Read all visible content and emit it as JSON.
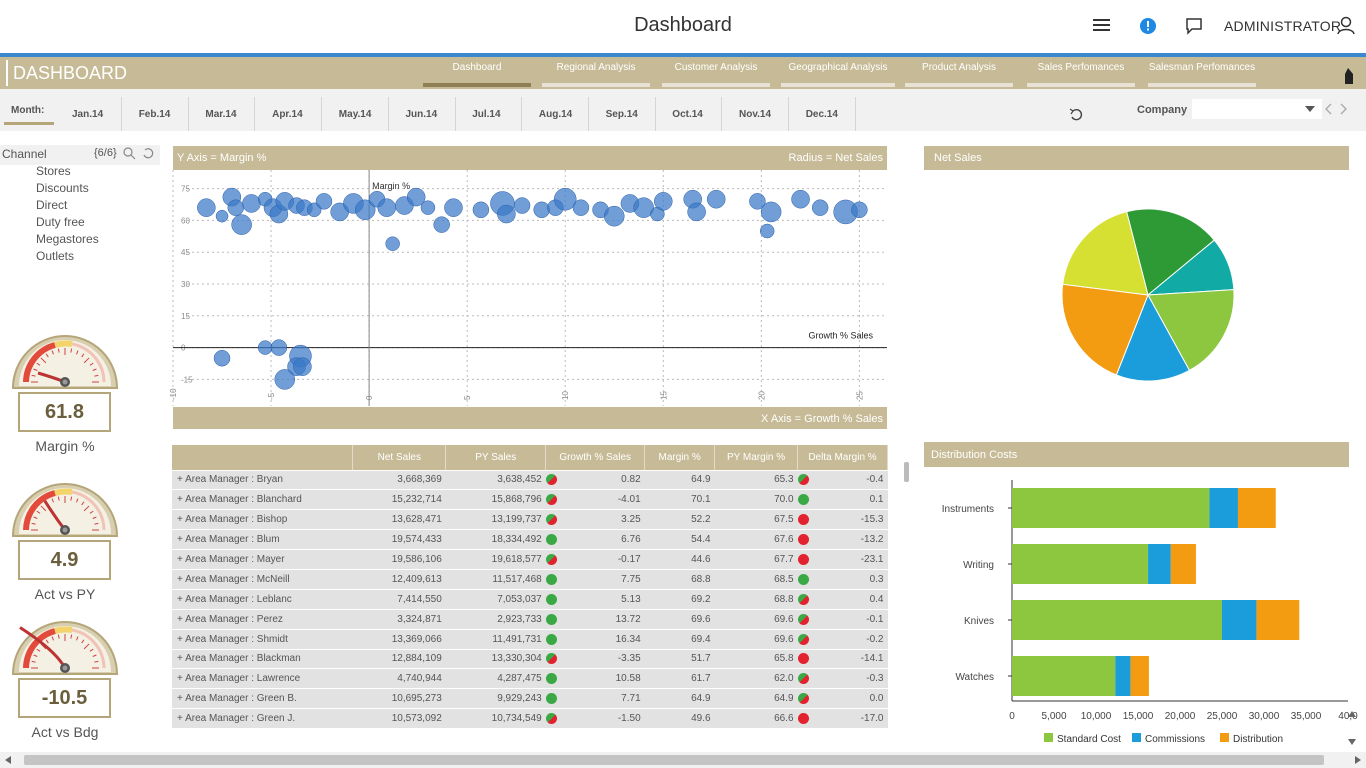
{
  "app": {
    "title": "Dashboard",
    "user": "ADMINISTRATOR"
  },
  "header": {
    "title": "DASHBOARD",
    "tabs": [
      {
        "label": "Dashboard"
      },
      {
        "label": "Regional Analysis"
      },
      {
        "label": "Customer Analysis"
      },
      {
        "label": "Geographical Analysis"
      },
      {
        "label": "Product Analysis"
      },
      {
        "label": "Sales Perfomances"
      },
      {
        "label": "Salesman Perfomances"
      }
    ]
  },
  "period": {
    "label": "Month:",
    "months": [
      "Jan.14",
      "Feb.14",
      "Mar.14",
      "Apr.14",
      "May.14",
      "Jun.14",
      "Jul.14",
      "Aug.14",
      "Sep.14",
      "Oct.14",
      "Nov.14",
      "Dec.14"
    ],
    "company_label": "Company",
    "company_value": ""
  },
  "channel": {
    "title": "Channel",
    "count": "{6/6}",
    "items": [
      "Stores",
      "Discounts",
      "Direct",
      "Duty free",
      "Megastores",
      "Outlets"
    ]
  },
  "gauges": [
    {
      "value": "61.8",
      "label": "Margin %"
    },
    {
      "value": "4.9",
      "label": "Act vs PY"
    },
    {
      "value": "-10.5",
      "label": "Act vs Bdg"
    }
  ],
  "scatter": {
    "top_left": "Y Axis = Margin %",
    "top_right": "Radius = Net Sales",
    "bottom_right": "X Axis = Growth % Sales",
    "y_ref_label": "Margin %",
    "x_ref_label": "Growth % Sales"
  },
  "table": {
    "columns": [
      "",
      "Net Sales",
      "PY Sales",
      "Growth % Sales",
      "Margin %",
      "PY Margin %",
      "Delta Margin %"
    ],
    "rows": [
      [
        "+ Area Manager : Bryan",
        "3,668,369",
        "3,638,452",
        "0.82",
        "64.9",
        "65.3",
        "-0.4"
      ],
      [
        "+ Area Manager : Blanchard",
        "15,232,714",
        "15,868,796",
        "-4.01",
        "70.1",
        "70.0",
        "0.1"
      ],
      [
        "+ Area Manager : Bishop",
        "13,628,471",
        "13,199,737",
        "3.25",
        "52.2",
        "67.5",
        "-15.3"
      ],
      [
        "+ Area Manager : Blum",
        "19,574,433",
        "18,334,492",
        "6.76",
        "54.4",
        "67.6",
        "-13.2"
      ],
      [
        "+ Area Manager : Mayer",
        "19,586,106",
        "19,618,577",
        "-0.17",
        "44.6",
        "67.7",
        "-23.1"
      ],
      [
        "+ Area Manager : McNeill",
        "12,409,613",
        "11,517,468",
        "7.75",
        "68.8",
        "68.5",
        "0.3"
      ],
      [
        "+ Area Manager : Leblanc",
        "7,414,550",
        "7,053,037",
        "5.13",
        "69.2",
        "68.8",
        "0.4"
      ],
      [
        "+ Area Manager : Perez",
        "3,324,871",
        "2,923,733",
        "13.72",
        "69.6",
        "69.6",
        "-0.1"
      ],
      [
        "+ Area Manager : Shmidt",
        "13,369,066",
        "11,491,731",
        "16.34",
        "69.4",
        "69.6",
        "-0.2"
      ],
      [
        "+ Area Manager : Blackman",
        "12,884,109",
        "13,330,304",
        "-3.35",
        "51.7",
        "65.8",
        "-14.1"
      ],
      [
        "+ Area Manager : Lawrence",
        "4,740,944",
        "4,287,475",
        "10.58",
        "61.7",
        "62.0",
        "-0.3"
      ],
      [
        "+ Area Manager : Green B.",
        "10,695,273",
        "9,929,243",
        "7.71",
        "64.9",
        "64.9",
        "0.0"
      ],
      [
        "+ Area Manager : Green J.",
        "10,573,092",
        "10,734,549",
        "-1.50",
        "49.6",
        "66.6",
        "-17.0"
      ]
    ]
  },
  "colors": {
    "band": "#c7bb97",
    "accent_blue": "#3a88d0",
    "green": "#8dc63f",
    "blue": "#1b9ddb",
    "orange": "#f39c12",
    "dark_green": "#2e9a36",
    "teal": "#12aaa5",
    "lime": "#d6e032",
    "bubble": "#3a78c8"
  },
  "chart_data": [
    {
      "type": "scatter",
      "title": "",
      "xlabel": "X Axis = Growth % Sales",
      "ylabel": "Y Axis = Margin %",
      "xlim": [
        -10,
        26
      ],
      "ylim": [
        -20,
        80
      ],
      "xticks": [
        "-10",
        "-5",
        "0",
        "5",
        "10",
        "15",
        "20",
        "25"
      ],
      "yticks": [
        "75",
        "60",
        "45",
        "30",
        "15",
        "0",
        "-15"
      ],
      "points": [
        {
          "x": -8.3,
          "y": 66,
          "r": 9
        },
        {
          "x": -7.5,
          "y": 62,
          "r": 6
        },
        {
          "x": -7,
          "y": 71,
          "r": 9
        },
        {
          "x": -6.8,
          "y": 66,
          "r": 8
        },
        {
          "x": -6.5,
          "y": 58,
          "r": 10
        },
        {
          "x": -6,
          "y": 68,
          "r": 9
        },
        {
          "x": -5.3,
          "y": 70,
          "r": 7
        },
        {
          "x": -4.9,
          "y": 66,
          "r": 9
        },
        {
          "x": -4.6,
          "y": 63,
          "r": 9
        },
        {
          "x": -4.3,
          "y": 69,
          "r": 9
        },
        {
          "x": -3.7,
          "y": 67,
          "r": 8
        },
        {
          "x": -3.3,
          "y": 66,
          "r": 8
        },
        {
          "x": -2.8,
          "y": 65,
          "r": 7
        },
        {
          "x": -2.3,
          "y": 69,
          "r": 8
        },
        {
          "x": -1.5,
          "y": 64,
          "r": 9
        },
        {
          "x": -0.8,
          "y": 68,
          "r": 10
        },
        {
          "x": -0.2,
          "y": 65,
          "r": 10
        },
        {
          "x": 0.4,
          "y": 70,
          "r": 8
        },
        {
          "x": 0.9,
          "y": 66,
          "r": 9
        },
        {
          "x": 1.2,
          "y": 49,
          "r": 7
        },
        {
          "x": 1.8,
          "y": 67,
          "r": 9
        },
        {
          "x": 2.4,
          "y": 71,
          "r": 9
        },
        {
          "x": 3.0,
          "y": 66,
          "r": 7
        },
        {
          "x": 3.7,
          "y": 58,
          "r": 8
        },
        {
          "x": 4.3,
          "y": 66,
          "r": 9
        },
        {
          "x": 5.7,
          "y": 65,
          "r": 8
        },
        {
          "x": 6.8,
          "y": 68,
          "r": 12
        },
        {
          "x": 7.0,
          "y": 63,
          "r": 9
        },
        {
          "x": 7.8,
          "y": 67,
          "r": 8
        },
        {
          "x": 8.8,
          "y": 65,
          "r": 8
        },
        {
          "x": 9.5,
          "y": 66,
          "r": 8
        },
        {
          "x": 10.0,
          "y": 70,
          "r": 11
        },
        {
          "x": 10.8,
          "y": 66,
          "r": 8
        },
        {
          "x": 11.8,
          "y": 65,
          "r": 8
        },
        {
          "x": 12.5,
          "y": 62,
          "r": 10
        },
        {
          "x": 13.3,
          "y": 68,
          "r": 9
        },
        {
          "x": 14.0,
          "y": 66,
          "r": 10
        },
        {
          "x": 14.7,
          "y": 63,
          "r": 7
        },
        {
          "x": 15.0,
          "y": 69,
          "r": 9
        },
        {
          "x": 16.5,
          "y": 70,
          "r": 9
        },
        {
          "x": 16.7,
          "y": 64,
          "r": 9
        },
        {
          "x": 17.7,
          "y": 70,
          "r": 9
        },
        {
          "x": 19.8,
          "y": 69,
          "r": 8
        },
        {
          "x": 20.3,
          "y": 55,
          "r": 7
        },
        {
          "x": 20.5,
          "y": 64,
          "r": 10
        },
        {
          "x": 22.0,
          "y": 70,
          "r": 9
        },
        {
          "x": 23.0,
          "y": 66,
          "r": 8
        },
        {
          "x": 24.3,
          "y": 64,
          "r": 12
        },
        {
          "x": 25.0,
          "y": 65,
          "r": 8
        },
        {
          "x": -7.5,
          "y": -5,
          "r": 8
        },
        {
          "x": -5.3,
          "y": 0,
          "r": 7
        },
        {
          "x": -4.6,
          "y": 0,
          "r": 8
        },
        {
          "x": -3.5,
          "y": -4,
          "r": 11
        },
        {
          "x": -3.7,
          "y": -9,
          "r": 9
        },
        {
          "x": -3.4,
          "y": -9,
          "r": 9
        },
        {
          "x": -4.3,
          "y": -15,
          "r": 10
        }
      ],
      "reference_lines": {
        "x": 0,
        "y": 0
      }
    },
    {
      "type": "pie",
      "title": "Net Sales",
      "slices": [
        {
          "value": 18,
          "color": "#2e9a36"
        },
        {
          "value": 10,
          "color": "#12aaa5"
        },
        {
          "value": 18,
          "color": "#8dc63f"
        },
        {
          "value": 14,
          "color": "#1b9ddb"
        },
        {
          "value": 21,
          "color": "#f39c12"
        },
        {
          "value": 19,
          "color": "#d6e032"
        }
      ]
    },
    {
      "type": "bar",
      "orientation": "horizontal",
      "stacked": true,
      "title": "Distribution Costs",
      "categories": [
        "Instruments",
        "Writing",
        "Knives",
        "Watches"
      ],
      "series": [
        {
          "name": "Standard Cost",
          "values": [
            23500,
            16200,
            25000,
            12300
          ],
          "color": "#8dc63f"
        },
        {
          "name": "Commissions",
          "values": [
            3400,
            2700,
            4100,
            1800
          ],
          "color": "#1b9ddb"
        },
        {
          "name": "Distribution",
          "values": [
            4500,
            3000,
            5100,
            2200
          ],
          "color": "#f39c12"
        }
      ],
      "xlim": [
        0,
        40000
      ],
      "xticks": [
        "0",
        "5,000",
        "10,000",
        "15,000",
        "20,000",
        "25,000",
        "30,000",
        "35,000",
        "40,0"
      ],
      "legend": "bottom"
    }
  ]
}
